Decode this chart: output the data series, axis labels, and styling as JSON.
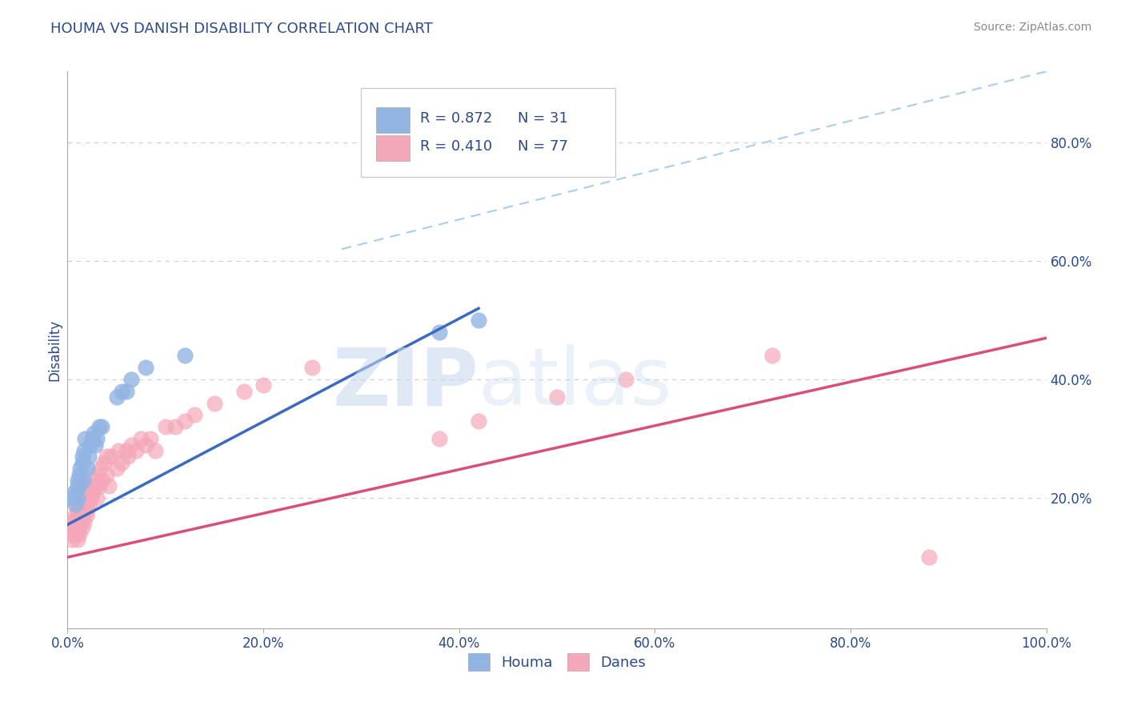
{
  "title": "HOUMA VS DANISH DISABILITY CORRELATION CHART",
  "source_text": "Source: ZipAtlas.com",
  "ylabel": "Disability",
  "xlim": [
    0.0,
    1.0
  ],
  "ylim": [
    -0.02,
    0.92
  ],
  "xticks": [
    0.0,
    0.2,
    0.4,
    0.6,
    0.8,
    1.0
  ],
  "ytick_positions": [
    0.2,
    0.4,
    0.6,
    0.8
  ],
  "xtick_labels": [
    "0.0%",
    "20.0%",
    "40.0%",
    "60.0%",
    "80.0%",
    "100.0%"
  ],
  "ytick_labels": [
    "20.0%",
    "40.0%",
    "60.0%",
    "80.0%"
  ],
  "houma_color": "#92b4e3",
  "danes_color": "#f4a7b9",
  "houma_line_color": "#3b6abf",
  "danes_line_color": "#d94f7a",
  "ref_line_color": "#aaccee",
  "legend_R_houma": "R = 0.872",
  "legend_N_houma": "N = 31",
  "legend_R_danes": "R = 0.410",
  "legend_N_danes": "N = 77",
  "watermark_zip": "ZIP",
  "watermark_atlas": "atlas",
  "houma_x": [
    0.005,
    0.007,
    0.008,
    0.01,
    0.01,
    0.01,
    0.012,
    0.012,
    0.013,
    0.015,
    0.015,
    0.016,
    0.017,
    0.018,
    0.02,
    0.022,
    0.023,
    0.025,
    0.027,
    0.028,
    0.03,
    0.032,
    0.035,
    0.05,
    0.055,
    0.06,
    0.065,
    0.08,
    0.12,
    0.38,
    0.42
  ],
  "houma_y": [
    0.2,
    0.21,
    0.19,
    0.22,
    0.23,
    0.2,
    0.24,
    0.22,
    0.25,
    0.26,
    0.27,
    0.23,
    0.28,
    0.3,
    0.25,
    0.27,
    0.29,
    0.3,
    0.31,
    0.29,
    0.3,
    0.32,
    0.32,
    0.37,
    0.38,
    0.38,
    0.4,
    0.42,
    0.44,
    0.48,
    0.5
  ],
  "danes_x": [
    0.003,
    0.004,
    0.005,
    0.005,
    0.006,
    0.007,
    0.007,
    0.008,
    0.008,
    0.009,
    0.009,
    0.01,
    0.01,
    0.01,
    0.011,
    0.011,
    0.012,
    0.012,
    0.013,
    0.013,
    0.014,
    0.014,
    0.015,
    0.015,
    0.016,
    0.016,
    0.017,
    0.017,
    0.018,
    0.018,
    0.019,
    0.019,
    0.02,
    0.02,
    0.022,
    0.022,
    0.023,
    0.024,
    0.025,
    0.026,
    0.027,
    0.028,
    0.03,
    0.03,
    0.032,
    0.033,
    0.035,
    0.037,
    0.04,
    0.04,
    0.042,
    0.045,
    0.05,
    0.052,
    0.055,
    0.06,
    0.062,
    0.065,
    0.07,
    0.075,
    0.08,
    0.085,
    0.09,
    0.1,
    0.11,
    0.12,
    0.13,
    0.15,
    0.18,
    0.2,
    0.25,
    0.38,
    0.42,
    0.5,
    0.57,
    0.72,
    0.88
  ],
  "danes_y": [
    0.14,
    0.15,
    0.13,
    0.16,
    0.14,
    0.15,
    0.16,
    0.14,
    0.17,
    0.15,
    0.16,
    0.13,
    0.17,
    0.18,
    0.15,
    0.18,
    0.14,
    0.17,
    0.16,
    0.18,
    0.16,
    0.19,
    0.15,
    0.19,
    0.17,
    0.2,
    0.16,
    0.2,
    0.18,
    0.21,
    0.17,
    0.21,
    0.18,
    0.22,
    0.19,
    0.22,
    0.21,
    0.2,
    0.22,
    0.21,
    0.24,
    0.22,
    0.2,
    0.23,
    0.22,
    0.25,
    0.23,
    0.26,
    0.24,
    0.27,
    0.22,
    0.27,
    0.25,
    0.28,
    0.26,
    0.28,
    0.27,
    0.29,
    0.28,
    0.3,
    0.29,
    0.3,
    0.28,
    0.32,
    0.32,
    0.33,
    0.34,
    0.36,
    0.38,
    0.39,
    0.42,
    0.3,
    0.33,
    0.37,
    0.4,
    0.44,
    0.1
  ],
  "houma_reg": [
    0.0,
    0.42,
    0.155,
    0.52
  ],
  "danes_reg": [
    0.0,
    1.0,
    0.1,
    0.47
  ],
  "ref_line": [
    0.28,
    1.0,
    0.62,
    0.92
  ],
  "background_color": "#ffffff",
  "grid_color": "#cccccc",
  "title_color": "#2b4a8b",
  "axis_label_color": "#2b4a8b",
  "tick_label_color": "#2b4a8b",
  "source_color": "#888888"
}
